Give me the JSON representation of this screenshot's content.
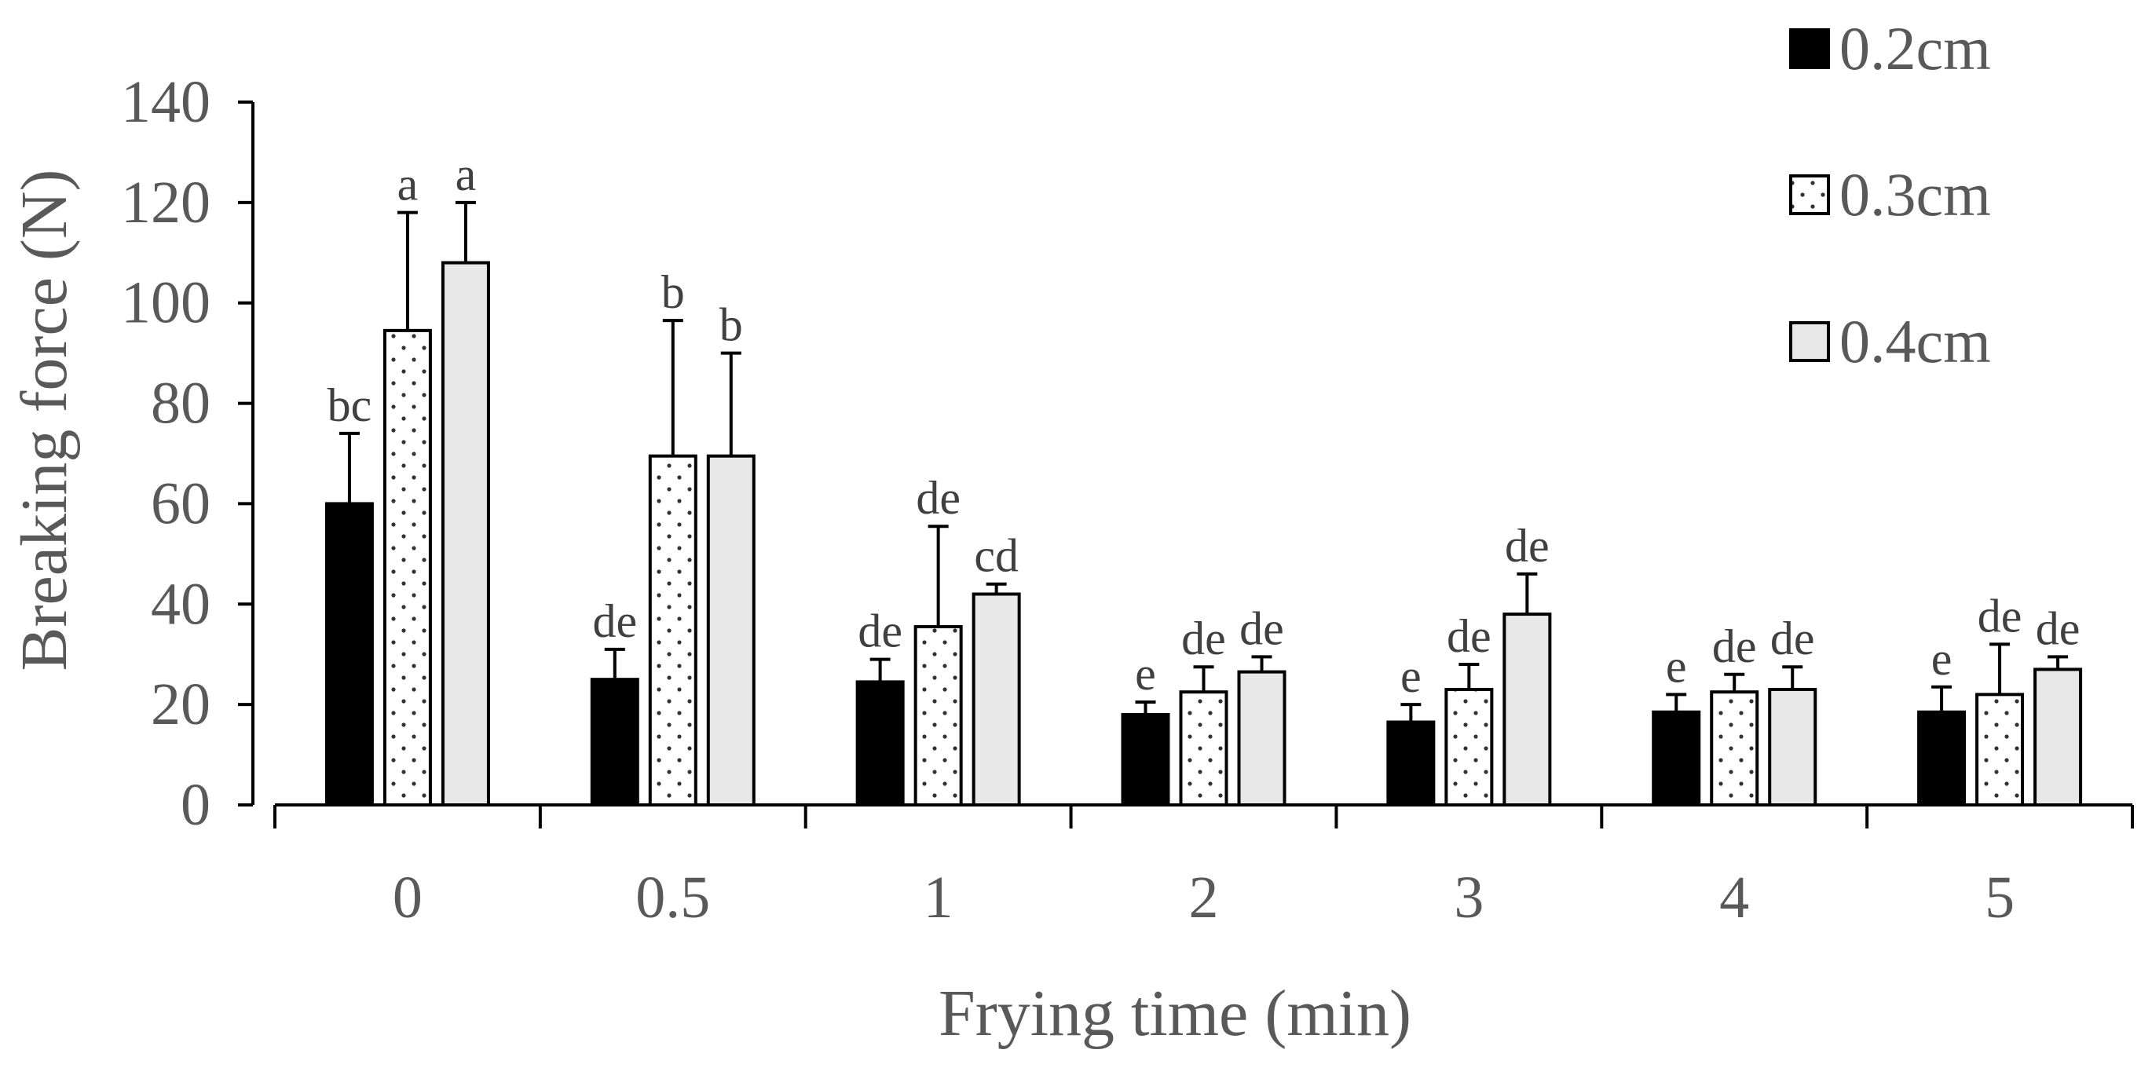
{
  "chart_data": {
    "type": "bar",
    "title": "",
    "xlabel": "Frying time (min)",
    "ylabel": "Breaking force (N)",
    "ylim": [
      0,
      140
    ],
    "yticks": [
      0,
      20,
      40,
      60,
      80,
      100,
      120,
      140
    ],
    "categories": [
      "0",
      "0.5",
      "1",
      "2",
      "3",
      "4",
      "5"
    ],
    "legend_position": "top-right",
    "series": [
      {
        "name": "0.2cm",
        "fill": "#000000",
        "pattern": "solid",
        "values": [
          60,
          25,
          24.5,
          18,
          16.5,
          18.5,
          18.5
        ],
        "errors": [
          14,
          6,
          4.5,
          2.5,
          3.5,
          3.5,
          5
        ],
        "labels": [
          "bc",
          "de",
          "de",
          "e",
          "e",
          "e",
          "e"
        ]
      },
      {
        "name": "0.3cm",
        "fill": "#ffffff",
        "pattern": "dots",
        "values": [
          94.5,
          69.5,
          35.5,
          22.5,
          23,
          22.5,
          22
        ],
        "errors": [
          23.5,
          27,
          20,
          5,
          5,
          3.5,
          10
        ],
        "labels": [
          "a",
          "b",
          "de",
          "de",
          "de",
          "de",
          "de"
        ]
      },
      {
        "name": "0.4cm",
        "fill": "#e8e8e8",
        "pattern": "solid",
        "values": [
          108,
          69.5,
          42,
          26.5,
          38,
          23,
          27
        ],
        "errors": [
          12,
          20.5,
          2,
          3,
          8,
          4.5,
          2.5
        ],
        "labels": [
          "a",
          "b",
          "cd",
          "de",
          "de",
          "de",
          "de"
        ]
      }
    ]
  }
}
